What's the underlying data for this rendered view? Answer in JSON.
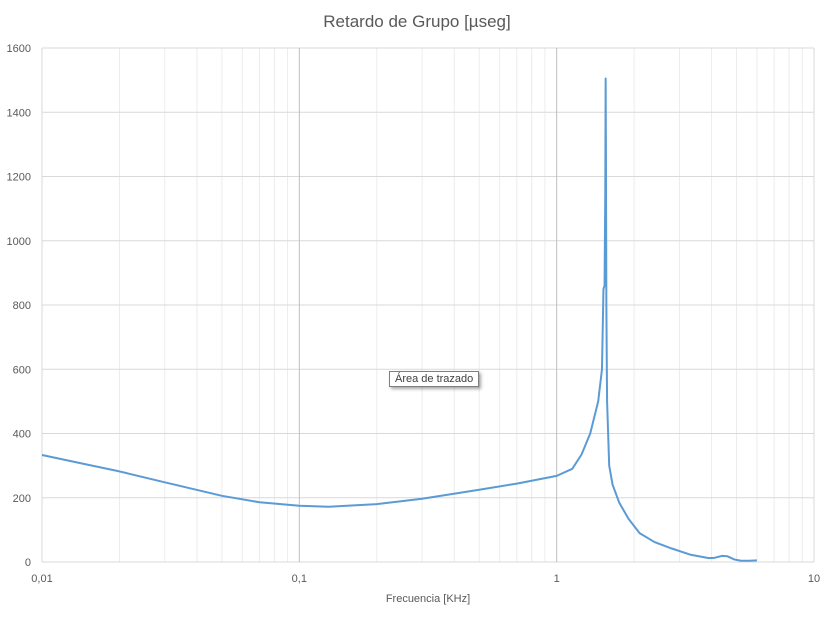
{
  "chart_data": {
    "type": "line",
    "title": "Retardo de Grupo [µseg]",
    "xlabel": "Frecuencia [KHz]",
    "ylabel": "",
    "xscale": "log",
    "xlim": [
      0.01,
      10
    ],
    "ylim": [
      0,
      1600
    ],
    "xticks": [
      "0,01",
      "0,1",
      "1",
      "10"
    ],
    "yticks": [
      0,
      200,
      400,
      600,
      800,
      1000,
      1200,
      1400,
      1600
    ],
    "grid": true,
    "legend": "none",
    "tooltip": "Área de trazado",
    "series": [
      {
        "color": "#5b9bd5",
        "x": [
          0.01,
          0.015,
          0.02,
          0.03,
          0.05,
          0.07,
          0.1,
          0.13,
          0.2,
          0.3,
          0.5,
          0.7,
          1.0,
          1.15,
          1.25,
          1.35,
          1.45,
          1.5,
          1.52,
          1.535,
          1.545,
          1.55,
          1.555,
          1.56,
          1.57,
          1.6,
          1.65,
          1.75,
          1.9,
          2.1,
          2.4,
          2.8,
          3.3,
          3.9,
          4.1,
          4.4,
          4.6,
          4.9,
          5.2,
          5.6,
          6.0
        ],
        "y": [
          333,
          303,
          282,
          248,
          206,
          186,
          175,
          172,
          180,
          197,
          225,
          244,
          268,
          290,
          335,
          400,
          500,
          600,
          850,
          860,
          1150,
          1505,
          1200,
          800,
          500,
          300,
          240,
          185,
          135,
          90,
          62,
          42,
          23,
          12,
          13,
          19,
          18,
          8,
          4,
          4,
          5
        ]
      }
    ]
  }
}
